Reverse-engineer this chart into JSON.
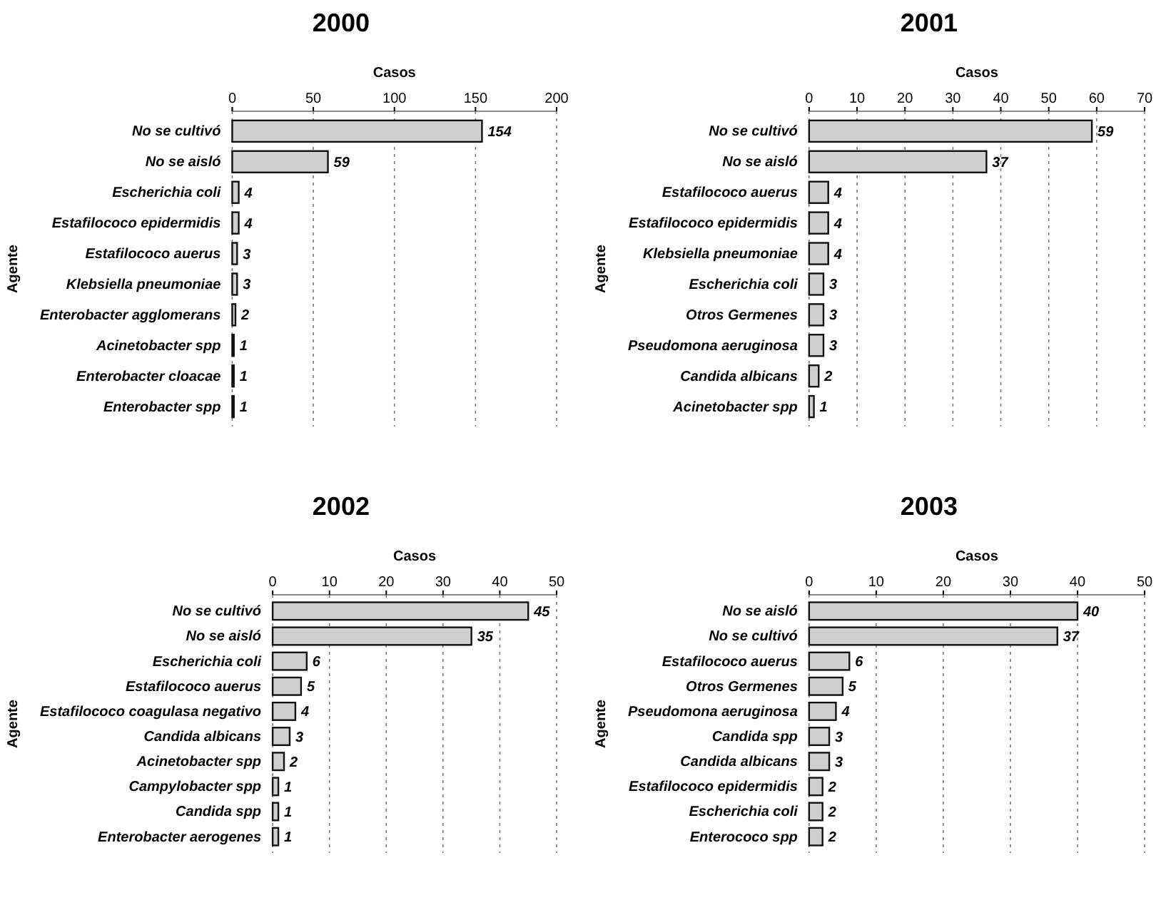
{
  "chart_data": [
    {
      "type": "bar",
      "orientation": "horizontal",
      "title": "2000",
      "xlabel": "Casos",
      "ylabel": "Agente",
      "categories": [
        "No se cultivó",
        "No se aisló",
        "Escherichia coli",
        "Estafilococo epidermidis",
        "Estafilococo auerus",
        "Klebsiella pneumoniae",
        "Enterobacter agglomerans",
        "Acinetobacter spp",
        "Enterobacter cloacae",
        "Enterobacter spp"
      ],
      "values": [
        154,
        59,
        4,
        4,
        3,
        3,
        2,
        1,
        1,
        1
      ],
      "color": "#cfcfcf",
      "xlim": [
        0,
        200
      ],
      "xticks": [
        0,
        50,
        100,
        150,
        200
      ],
      "grid": "x",
      "data_labels": true
    },
    {
      "type": "bar",
      "orientation": "horizontal",
      "title": "2001",
      "xlabel": "Casos",
      "ylabel": "Agente",
      "categories": [
        "No se cultivó",
        "No se aisló",
        "Estafilococo auerus",
        "Estafilococo epidermidis",
        "Klebsiella pneumoniae",
        "Escherichia coli",
        "Otros Germenes",
        "Pseudomona aeruginosa",
        "Candida albicans",
        "Acinetobacter spp"
      ],
      "values": [
        59,
        37,
        4,
        4,
        4,
        3,
        3,
        3,
        2,
        1
      ],
      "color": "#cfcfcf",
      "xlim": [
        0,
        70
      ],
      "xticks": [
        0,
        10,
        20,
        30,
        40,
        50,
        60,
        70
      ],
      "grid": "x",
      "data_labels": true
    },
    {
      "type": "bar",
      "orientation": "horizontal",
      "title": "2002",
      "xlabel": "Casos",
      "ylabel": "Agente",
      "categories": [
        "No se cultivó",
        "No se aisló",
        "Escherichia coli",
        "Estafilococo auerus",
        "Estafilococo coagulasa negativo",
        "Candida albicans",
        "Acinetobacter spp",
        "Campylobacter spp",
        "Candida spp",
        "Enterobacter aerogenes"
      ],
      "values": [
        45,
        35,
        6,
        5,
        4,
        3,
        2,
        1,
        1,
        1
      ],
      "color": "#cfcfcf",
      "xlim": [
        0,
        50
      ],
      "xticks": [
        0,
        10,
        20,
        30,
        40,
        50
      ],
      "grid": "x",
      "data_labels": true
    },
    {
      "type": "bar",
      "orientation": "horizontal",
      "title": "2003",
      "xlabel": "Casos",
      "ylabel": "Agente",
      "categories": [
        "No se aisló",
        "No se cultivó",
        "Estafilococo auerus",
        "Otros Germenes",
        "Pseudomona aeruginosa",
        "Candida spp",
        "Candida albicans",
        "Estafilococo epidermidis",
        "Escherichia coli",
        "Enterococo spp"
      ],
      "values": [
        40,
        37,
        6,
        5,
        4,
        3,
        3,
        2,
        2,
        2
      ],
      "color": "#cfcfcf",
      "xlim": [
        0,
        50
      ],
      "xticks": [
        0,
        10,
        20,
        30,
        40,
        50
      ],
      "grid": "x",
      "data_labels": true
    }
  ]
}
